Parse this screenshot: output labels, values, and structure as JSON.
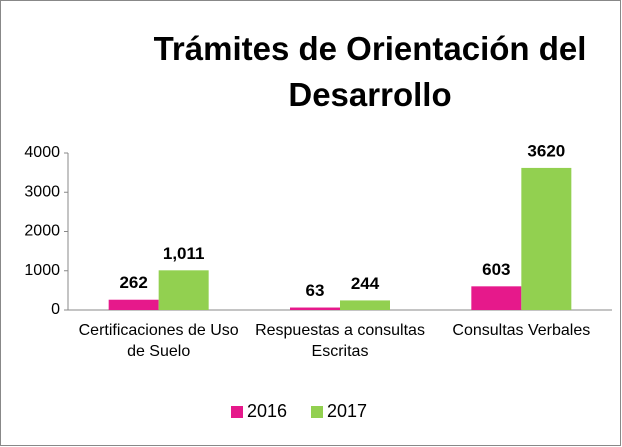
{
  "chart_data": {
    "type": "bar",
    "title": "Trámites de Orientación del Desarrollo",
    "categories": [
      "Certificaciones de Uso de Suelo",
      "Respuestas a consultas Escritas",
      "Consultas Verbales"
    ],
    "series": [
      {
        "name": "2016",
        "color": "#e6198b",
        "values": [
          262,
          63,
          603
        ]
      },
      {
        "name": "2017",
        "color": "#92d050",
        "values": [
          1011,
          244,
          3620
        ],
        "value_labels": [
          "1,011",
          "244",
          "3620"
        ]
      }
    ],
    "ylim": [
      0,
      4000
    ],
    "yticks": [
      0,
      1000,
      2000,
      3000,
      4000
    ],
    "grid": false,
    "legend": "bottom"
  }
}
